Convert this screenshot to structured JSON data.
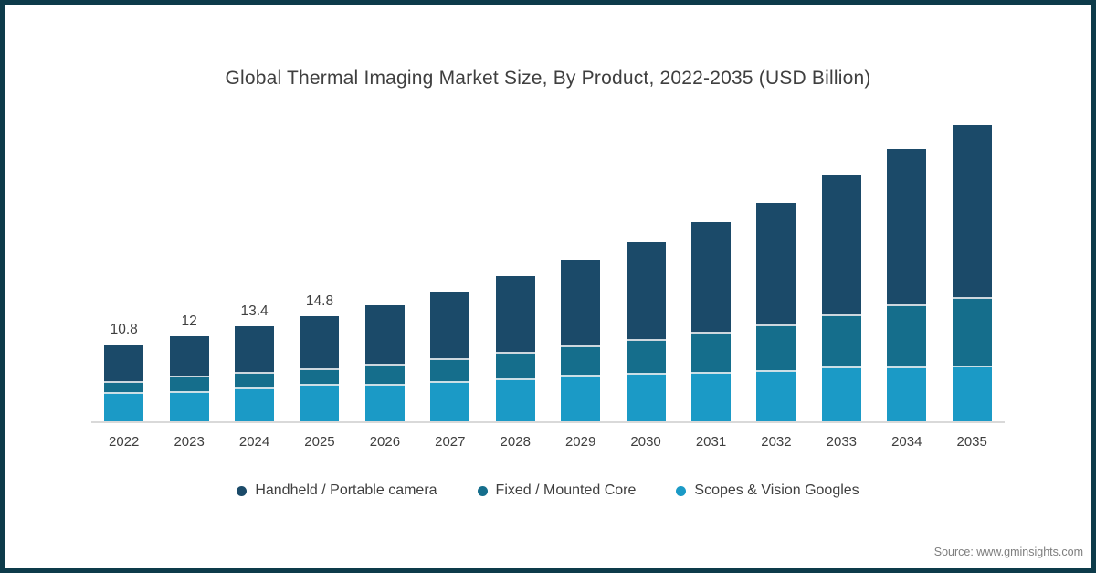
{
  "title": "Global Thermal Imaging Market Size, By Product, 2022-2035 (USD Billion)",
  "source": "Source: www.gminsights.com",
  "colors": {
    "frame": "#0d3b4a",
    "axis_line": "#d9d9d9",
    "text": "#3f3f3f",
    "source_text": "#7e7e7e"
  },
  "chart_data": {
    "type": "bar",
    "stacked": true,
    "title": "Global Thermal Imaging Market Size, By Product, 2022-2035 (USD Billion)",
    "categories": [
      "2022",
      "2023",
      "2024",
      "2025",
      "2026",
      "2027",
      "2028",
      "2029",
      "2030",
      "2031",
      "2032",
      "2033",
      "2034",
      "2035"
    ],
    "series": [
      {
        "name": "Handheld / Portable camera",
        "color": "#1b4a69",
        "values": [
          5.3,
          5.8,
          6.6,
          7.5,
          8.4,
          9.5,
          10.8,
          12.2,
          13.8,
          15.5,
          17.2,
          19.5,
          21.9,
          24.2
        ]
      },
      {
        "name": "Fixed / Mounted Core",
        "color": "#156e8c",
        "values": [
          1.5,
          2.1,
          2.2,
          2.2,
          2.8,
          3.2,
          3.6,
          4.1,
          4.7,
          5.5,
          6.3,
          7.3,
          8.6,
          9.5
        ]
      },
      {
        "name": "Scopes & Vision Googles",
        "color": "#1b9ac6",
        "values": [
          4.0,
          4.1,
          4.6,
          5.1,
          5.1,
          5.5,
          5.9,
          6.3,
          6.6,
          6.8,
          7.0,
          7.5,
          7.5,
          7.6
        ]
      }
    ],
    "stack_order_bottom_to_top": [
      "Scopes & Vision Googles",
      "Fixed / Mounted Core",
      "Handheld / Portable camera"
    ],
    "totals": [
      10.8,
      12,
      13.4,
      14.8,
      16.3,
      18.2,
      20.3,
      22.6,
      25.1,
      27.8,
      30.5,
      34.3,
      38.0,
      41.3
    ],
    "total_labels": [
      "10.8",
      "12",
      "13.4",
      "14.8",
      "",
      "",
      "",
      "",
      "",
      "",
      "",
      "",
      "",
      ""
    ],
    "xlabel": "",
    "ylabel": "",
    "ylim": [
      0,
      42
    ],
    "legend_position": "bottom",
    "grid": false
  }
}
